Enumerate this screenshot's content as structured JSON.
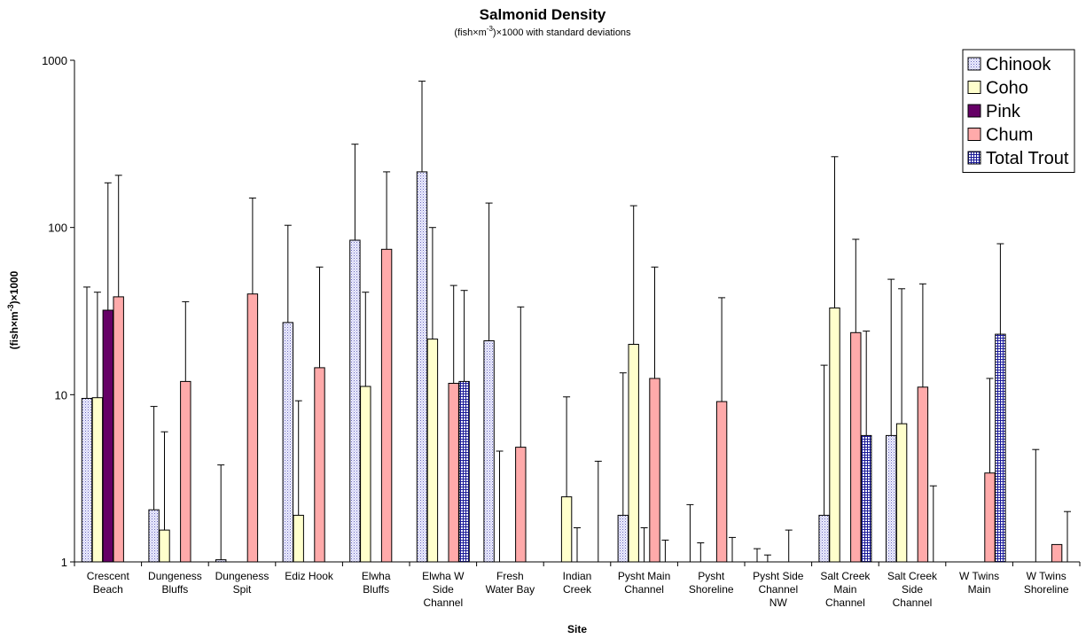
{
  "chart_data": {
    "type": "bar",
    "title": "Salmonid Density",
    "subtitle": {
      "prefix": "(fish×m",
      "superscript": "-3",
      "suffix": ")×1000 with standard deviations"
    },
    "xlabel": "Site",
    "ylabel": {
      "prefix": "(fish×m",
      "superscript": "-3",
      "suffix": ")×1000"
    },
    "y_scale": "log",
    "ylim": [
      1,
      1000
    ],
    "y_ticks": [
      {
        "value": 1,
        "label": "1"
      },
      {
        "value": 10,
        "label": "10"
      },
      {
        "value": 100,
        "label": "100"
      },
      {
        "value": 1000,
        "label": "1000"
      }
    ],
    "legend_position": "top-right",
    "categories": [
      [
        "Crescent",
        "Beach"
      ],
      [
        "Dungeness",
        "Bluffs"
      ],
      [
        "Dungeness",
        "Spit"
      ],
      [
        "Ediz Hook"
      ],
      [
        "Elwha",
        "Bluffs"
      ],
      [
        "Elwha W",
        "Side",
        "Channel"
      ],
      [
        "Fresh",
        "Water Bay"
      ],
      [
        "Indian",
        "Creek"
      ],
      [
        "Pysht Main",
        "Channel"
      ],
      [
        "Pysht",
        "Shoreline"
      ],
      [
        "Pysht Side",
        "Channel",
        "NW"
      ],
      [
        "Salt Creek",
        "Main",
        "Channel"
      ],
      [
        "Salt Creek",
        "Side",
        "Channel"
      ],
      [
        "W Twins",
        "Main"
      ],
      [
        "W Twins",
        "Shoreline"
      ]
    ],
    "series": [
      {
        "name": "Chinook",
        "color": "#ccccff",
        "pattern": "dots",
        "values": [
          9.5,
          2.05,
          1.03,
          27,
          84,
          215,
          21,
          1,
          1.9,
          1,
          1,
          1.9,
          5.7,
          1,
          1
        ],
        "errors": [
          44,
          8.5,
          3.8,
          103,
          315,
          750,
          140,
          1,
          13.5,
          2.2,
          1.2,
          15,
          49,
          1,
          1
        ]
      },
      {
        "name": "Coho",
        "color": "#ffffcc",
        "pattern": "none",
        "values": [
          9.6,
          1.55,
          1,
          1.9,
          11.2,
          21.5,
          1,
          2.45,
          20,
          1,
          1,
          33,
          6.7,
          1,
          1
        ],
        "errors": [
          41,
          6,
          1,
          9.2,
          41,
          100,
          4.6,
          9.7,
          135,
          1.3,
          1.1,
          265,
          43,
          1,
          4.7
        ]
      },
      {
        "name": "Pink",
        "color": "#660066",
        "pattern": "none",
        "values": [
          32,
          1,
          1,
          1,
          1,
          1,
          1,
          1,
          1,
          1,
          1,
          1,
          1,
          1,
          1
        ],
        "errors": [
          185,
          1,
          1,
          1,
          1,
          1,
          1,
          1.6,
          1.6,
          1,
          1,
          1,
          1,
          1,
          1
        ]
      },
      {
        "name": "Chum",
        "color": "#ffaaaa",
        "pattern": "none",
        "values": [
          38.5,
          12,
          40,
          14.5,
          74,
          11.7,
          4.85,
          1,
          12.5,
          9.1,
          1,
          23.5,
          11.1,
          3.4,
          1.27
        ],
        "errors": [
          205,
          36,
          150,
          58,
          215,
          45,
          33.5,
          1,
          58,
          38,
          1.55,
          85,
          46,
          12.5,
          1
        ]
      },
      {
        "name": "Total Trout",
        "color": "#3333cc",
        "pattern": "grid",
        "values": [
          1,
          1,
          1,
          1,
          1,
          12,
          1,
          1,
          1,
          1,
          1,
          5.7,
          1,
          23,
          1
        ],
        "errors": [
          1,
          1,
          1,
          1,
          1,
          42,
          1,
          4,
          1.35,
          1.4,
          1,
          24,
          2.85,
          80,
          2
        ]
      }
    ]
  }
}
